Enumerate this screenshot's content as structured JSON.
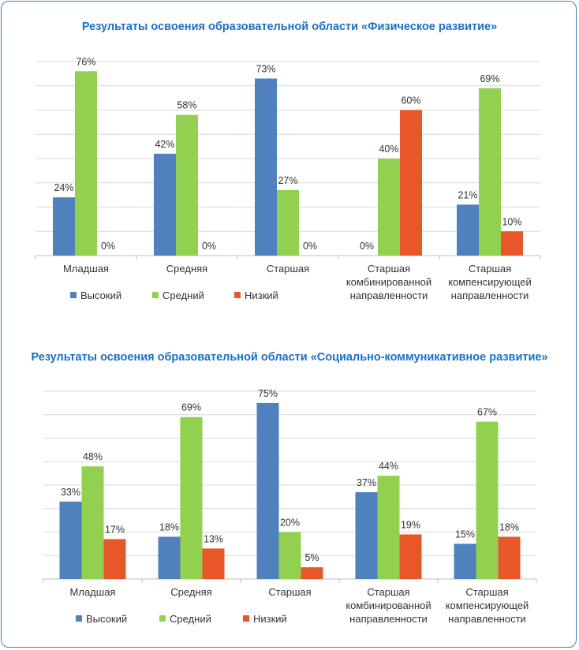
{
  "chart_data": [
    {
      "type": "bar",
      "title": "Результаты освоения образовательной области «Физическое развитие»",
      "categories": [
        [
          "Младшая"
        ],
        [
          "Средняя"
        ],
        [
          "Старшая"
        ],
        [
          "Старшая",
          "комбинированной",
          "направленности"
        ],
        [
          "Старшая",
          "компенсирующей",
          "направленности"
        ]
      ],
      "series": [
        {
          "name": "Высокий",
          "color": "#4f81bd",
          "values": [
            24,
            42,
            73,
            0,
            21
          ]
        },
        {
          "name": "Средний",
          "color": "#92d050",
          "values": [
            76,
            58,
            27,
            40,
            69
          ]
        },
        {
          "name": "Низкий",
          "color": "#e8572a",
          "values": [
            0,
            0,
            0,
            60,
            10
          ]
        }
      ],
      "value_suffix": "%",
      "ylim": [
        0,
        80
      ],
      "grid": true,
      "legend_position": "bottom-left"
    },
    {
      "type": "bar",
      "title": "Результаты освоения образовательной области «Социально-коммуникативное развитие»",
      "categories": [
        [
          "Младшая"
        ],
        [
          "Средняя"
        ],
        [
          "Старшая"
        ],
        [
          "Старшая",
          "комбинированной",
          "направленности"
        ],
        [
          "Старшая",
          "компенсирующей",
          "направленности"
        ]
      ],
      "series": [
        {
          "name": "Высокий",
          "color": "#4f81bd",
          "values": [
            33,
            18,
            75,
            37,
            15
          ]
        },
        {
          "name": "Средний",
          "color": "#92d050",
          "values": [
            48,
            69,
            20,
            44,
            67
          ]
        },
        {
          "name": "Низкий",
          "color": "#e8572a",
          "values": [
            17,
            13,
            5,
            19,
            18
          ]
        }
      ],
      "value_suffix": "%",
      "ylim": [
        0,
        80
      ],
      "grid": true,
      "legend_position": "bottom-left"
    }
  ]
}
